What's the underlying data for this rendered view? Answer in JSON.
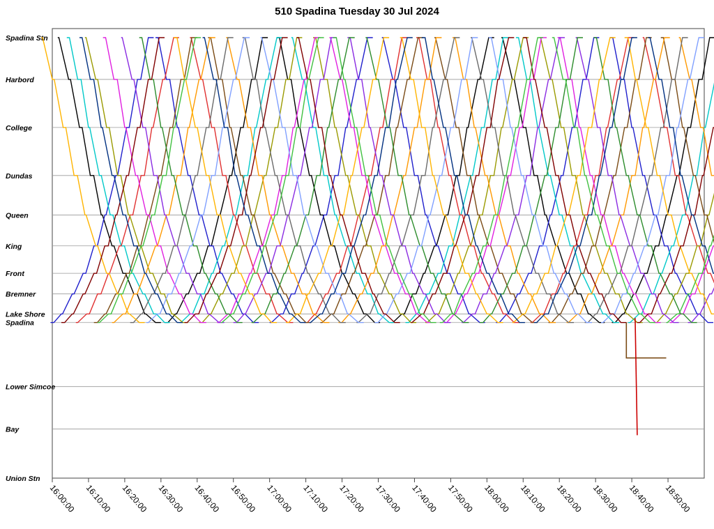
{
  "chart_data": {
    "type": "line",
    "title": "510 Spadina Tuesday 30 Jul 2024",
    "xlabel": "",
    "ylabel": "",
    "x_range": [
      "16:00:00",
      "19:00:00"
    ],
    "x_ticks": [
      "16:00:00",
      "16:10:00",
      "16:20:00",
      "16:30:00",
      "16:40:00",
      "16:50:00",
      "17:00:00",
      "17:10:00",
      "17:20:00",
      "17:30:00",
      "17:40:00",
      "17:50:00",
      "18:00:00",
      "18:10:00",
      "18:20:00",
      "18:30:00",
      "18:40:00",
      "18:50:00"
    ],
    "stops": [
      {
        "name": "Spadina Stn",
        "km": 0.0
      },
      {
        "name": "Harbord",
        "km": 0.73
      },
      {
        "name": "College",
        "km": 1.57
      },
      {
        "name": "Dundas",
        "km": 2.41
      },
      {
        "name": "Queen",
        "km": 3.1
      },
      {
        "name": "King",
        "km": 3.64
      },
      {
        "name": "Front",
        "km": 4.12
      },
      {
        "name": "Bremner",
        "km": 4.48
      },
      {
        "name": "Lake Shore",
        "km": 4.83
      },
      {
        "name": "Spadina",
        "km": 4.98
      },
      {
        "name": "Lower Simcoe",
        "km": 6.1
      },
      {
        "name": "Bay",
        "km": 6.84
      },
      {
        "name": "Union Stn",
        "km": 7.7
      }
    ],
    "grid": true,
    "legend": "none",
    "series_colors": [
      "#000000",
      "#1f1fcc",
      "#00c8c8",
      "#e03030",
      "#9a9a00",
      "#7a4a14",
      "#e020e0",
      "#ff9900",
      "#8a2be2",
      "#6a6a6a",
      "#2c8c2c",
      "#80a0ff",
      "#ffb400",
      "#800000",
      "#003080",
      "#40c040"
    ],
    "series": [
      {
        "trips": [
          [
            "16:01:30",
            "down"
          ],
          [
            "16:31:00",
            "up"
          ],
          [
            "17:02:00",
            "down"
          ],
          [
            "17:33:30",
            "up"
          ],
          [
            "18:04:00",
            "down"
          ],
          [
            "18:34:30",
            "up"
          ]
        ]
      },
      {
        "trips": [
          [
            "15:59:30",
            "up"
          ],
          [
            "16:28:30",
            "down"
          ],
          [
            "17:00:00",
            "up"
          ],
          [
            "17:31:00",
            "down"
          ],
          [
            "18:02:30",
            "up"
          ],
          [
            "18:34:00",
            "down"
          ]
        ]
      },
      {
        "trips": [
          [
            "16:04:00",
            "down"
          ],
          [
            "16:35:00",
            "up"
          ],
          [
            "17:06:00",
            "down"
          ],
          [
            "17:37:30",
            "up"
          ],
          [
            "18:08:00",
            "down"
          ],
          [
            "18:39:00",
            "up"
          ]
        ]
      },
      {
        "trips": [
          [
            "16:06:30",
            "up"
          ],
          [
            "16:38:00",
            "down"
          ],
          [
            "17:09:30",
            "up"
          ],
          [
            "17:40:30",
            "down"
          ],
          [
            "18:12:00",
            "up"
          ],
          [
            "18:43:00",
            "down"
          ]
        ]
      },
      {
        "trips": [
          [
            "16:09:00",
            "down"
          ],
          [
            "16:40:30",
            "up"
          ],
          [
            "17:12:00",
            "down"
          ],
          [
            "17:43:00",
            "up"
          ],
          [
            "18:14:30",
            "down"
          ],
          [
            "18:46:00",
            "up"
          ]
        ]
      },
      {
        "trips": [
          [
            "16:11:30",
            "up"
          ],
          [
            "16:43:00",
            "down"
          ],
          [
            "17:14:00",
            "up"
          ],
          [
            "17:45:30",
            "down"
          ],
          [
            "18:17:00",
            "up"
          ],
          [
            "18:48:00",
            "down"
          ]
        ]
      },
      {
        "trips": [
          [
            "16:14:00",
            "down"
          ],
          [
            "16:45:30",
            "up"
          ],
          [
            "17:16:30",
            "down"
          ],
          [
            "17:48:00",
            "up"
          ],
          [
            "18:19:30",
            "down"
          ],
          [
            "18:50:30",
            "up"
          ]
        ]
      },
      {
        "trips": [
          [
            "16:16:30",
            "up"
          ],
          [
            "16:48:00",
            "down"
          ],
          [
            "17:19:00",
            "up"
          ],
          [
            "17:50:30",
            "down"
          ],
          [
            "18:22:00",
            "up"
          ],
          [
            "18:53:00",
            "down"
          ]
        ]
      },
      {
        "trips": [
          [
            "16:19:00",
            "down"
          ],
          [
            "16:50:00",
            "up"
          ],
          [
            "17:21:30",
            "down"
          ],
          [
            "17:53:00",
            "up"
          ],
          [
            "18:24:30",
            "down"
          ],
          [
            "18:55:30",
            "up"
          ]
        ]
      },
      {
        "trips": [
          [
            "16:21:30",
            "up"
          ],
          [
            "16:52:30",
            "down"
          ],
          [
            "17:24:00",
            "up"
          ],
          [
            "17:55:30",
            "down"
          ],
          [
            "18:27:00",
            "up"
          ]
        ]
      },
      {
        "trips": [
          [
            "16:24:00",
            "down"
          ],
          [
            "16:55:00",
            "up"
          ],
          [
            "17:26:30",
            "down"
          ],
          [
            "17:58:00",
            "up"
          ],
          [
            "18:29:30",
            "down"
          ]
        ]
      },
      {
        "trips": [
          [
            "16:26:00",
            "up"
          ],
          [
            "16:57:30",
            "down"
          ],
          [
            "17:29:00",
            "up"
          ],
          [
            "18:00:30",
            "down"
          ],
          [
            "18:31:30",
            "up"
          ]
        ]
      },
      {
        "trips": [
          [
            "15:57:00",
            "down"
          ],
          [
            "16:33:30",
            "down"
          ],
          [
            "17:04:30",
            "up"
          ],
          [
            "17:36:00",
            "down"
          ],
          [
            "18:07:00",
            "up"
          ],
          [
            "18:38:00",
            "down"
          ]
        ]
      },
      {
        "trips": [
          [
            "16:02:30",
            "up"
          ],
          [
            "16:36:30",
            "up"
          ],
          [
            "17:07:30",
            "down"
          ],
          [
            "17:39:00",
            "up"
          ],
          [
            "18:10:00",
            "down"
          ],
          [
            "18:41:30",
            "up"
          ]
        ]
      },
      {
        "trips": [
          [
            "16:07:30",
            "down"
          ],
          [
            "16:41:30",
            "down"
          ],
          [
            "17:11:00",
            "up"
          ],
          [
            "17:42:00",
            "down"
          ],
          [
            "18:13:00",
            "up"
          ],
          [
            "18:44:30",
            "down"
          ]
        ]
      },
      {
        "trips": [
          [
            "16:12:30",
            "up"
          ],
          [
            "16:46:30",
            "up"
          ],
          [
            "17:17:30",
            "down"
          ],
          [
            "17:47:00",
            "up"
          ],
          [
            "18:18:00",
            "down"
          ],
          [
            "18:49:30",
            "up"
          ]
        ]
      }
    ],
    "annotations": [
      {
        "x": [
          "18:38:30",
          "18:49:30"
        ],
        "y_km": 5.6,
        "label": ""
      },
      {
        "x": "18:41:30",
        "y_km": [
          4.9,
          6.95
        ],
        "label": ""
      }
    ]
  }
}
